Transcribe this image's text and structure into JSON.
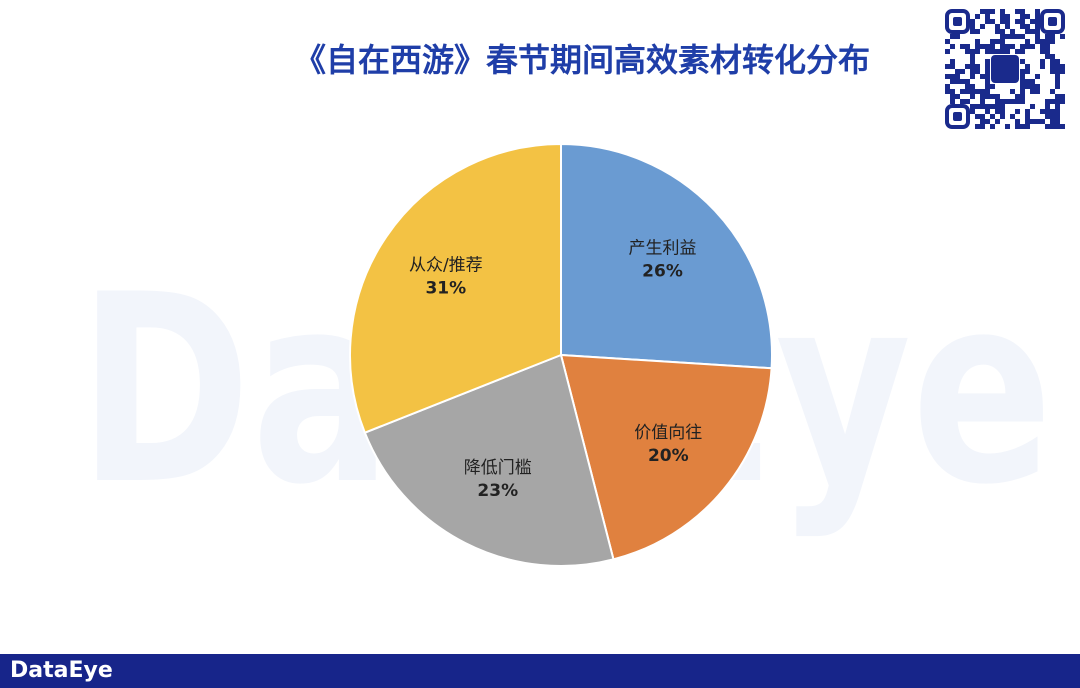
{
  "chart_data": {
    "type": "pie",
    "title": "《自在西游》春节期间高效素材转化分布",
    "categories": [
      "产生利益",
      "价值向往",
      "降低门槛",
      "从众/推荐"
    ],
    "values": [
      26,
      20,
      23,
      31
    ],
    "value_labels": [
      "26%",
      "20%",
      "23%",
      "31%"
    ],
    "colors": [
      "#6a9bd2",
      "#e0813f",
      "#a6a6a6",
      "#f3c244"
    ]
  },
  "watermark": "DataEye",
  "footer": {
    "brand": "DataEye"
  }
}
